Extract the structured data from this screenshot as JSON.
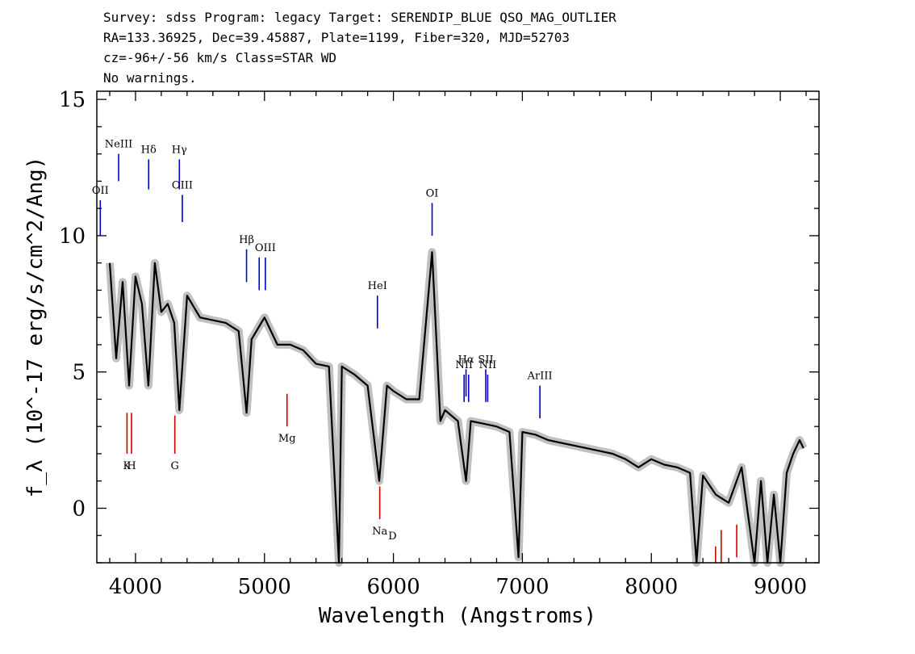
{
  "header": {
    "line1": "Survey: sdss Program: legacy Target: SERENDIP_BLUE QSO_MAG_OUTLIER",
    "line2": "RA=133.36925, Dec=39.45887, Plate=1199, Fiber=320, MJD=52703",
    "line3": "cz=-96+/-56 km/s Class=STAR WD",
    "line4": "No warnings."
  },
  "chart_data": {
    "type": "line",
    "xlabel": "Wavelength (Angstroms)",
    "ylabel": "f_λ (10^-17 erg/s/cm^2/Ang)",
    "xlim": [
      3700,
      9300
    ],
    "ylim": [
      -2,
      15.3
    ],
    "xticks": [
      4000,
      5000,
      6000,
      7000,
      8000,
      9000
    ],
    "yticks": [
      0,
      5,
      10,
      15
    ],
    "colors": {
      "flux": "#000000",
      "error": "#c0c0c0",
      "emission": "#0000cc",
      "absorption": "#cc0000"
    },
    "series": [
      {
        "x": [
          3800,
          3850,
          3900,
          3950,
          4000,
          4050,
          4100,
          4150,
          4200,
          4250,
          4300,
          4340,
          4400,
          4500,
          4600,
          4700,
          4800,
          4861,
          4900,
          5000,
          5100,
          5200,
          5300,
          5400,
          5500,
          5577,
          5600,
          5700,
          5800,
          5890,
          5950,
          6000,
          6100,
          6200,
          6300,
          6364,
          6400,
          6500,
          6563,
          6600,
          6700,
          6800,
          6900,
          6970,
          7000,
          7100,
          7200,
          7300,
          7400,
          7500,
          7600,
          7700,
          7800,
          7900,
          8000,
          8100,
          8200,
          8300,
          8350,
          8400,
          8500,
          8600,
          8700,
          8800,
          8850,
          8900,
          8950,
          9000,
          9050,
          9100,
          9150,
          9180
        ],
        "values": [
          9.0,
          5.5,
          8.3,
          4.5,
          8.5,
          7.5,
          4.5,
          9.0,
          7.2,
          7.5,
          6.8,
          3.6,
          7.8,
          7.0,
          6.9,
          6.8,
          6.5,
          3.5,
          6.2,
          7.0,
          6.0,
          6.0,
          5.8,
          5.3,
          5.2,
          -2.0,
          5.2,
          4.9,
          4.5,
          1.0,
          4.5,
          4.3,
          4.0,
          4.0,
          9.4,
          3.2,
          3.6,
          3.2,
          1.0,
          3.2,
          3.1,
          3.0,
          2.8,
          -1.8,
          2.8,
          2.7,
          2.5,
          2.4,
          2.3,
          2.2,
          2.1,
          2.0,
          1.8,
          1.5,
          1.8,
          1.6,
          1.5,
          1.3,
          -2.0,
          1.2,
          0.5,
          0.2,
          1.5,
          -2.0,
          1.0,
          -2.0,
          0.5,
          -2.0,
          1.3,
          2.0,
          2.5,
          2.2
        ]
      }
    ],
    "emission_lines": [
      {
        "label": "OII",
        "x": 3727,
        "y1": 10.0,
        "y2": 11.3
      },
      {
        "label": "NeIII",
        "x": 3869,
        "y1": 12.0,
        "y2": 13.0
      },
      {
        "label": "Hδ",
        "x": 4102,
        "y1": 11.7,
        "y2": 12.8
      },
      {
        "label": "Hγ",
        "x": 4340,
        "y1": 11.7,
        "y2": 12.8
      },
      {
        "label": "OIII",
        "x": 4363,
        "y1": 10.5,
        "y2": 11.5
      },
      {
        "label": "Hβ",
        "x": 4861,
        "y1": 8.3,
        "y2": 9.5
      },
      {
        "label": "",
        "x": 4959,
        "y1": 8.0,
        "y2": 9.2
      },
      {
        "label": "OIII",
        "x": 5007,
        "y1": 8.0,
        "y2": 9.2
      },
      {
        "label": "HeI",
        "x": 5876,
        "y1": 6.6,
        "y2": 7.8
      },
      {
        "label": "OI",
        "x": 6300,
        "y1": 10.0,
        "y2": 11.2
      },
      {
        "label": "NII",
        "x": 6548,
        "y1": 3.9,
        "y2": 4.9
      },
      {
        "label": "Hα",
        "x": 6563,
        "y1": 4.1,
        "y2": 5.1
      },
      {
        "label": "",
        "x": 6583,
        "y1": 3.9,
        "y2": 4.9
      },
      {
        "label": "SII",
        "x": 6716,
        "y1": 3.9,
        "y2": 5.1
      },
      {
        "label": "NII",
        "x": 6731,
        "y1": 3.9,
        "y2": 4.9
      },
      {
        "label": "ArIII",
        "x": 7136,
        "y1": 3.3,
        "y2": 4.5
      }
    ],
    "absorption_lines": [
      {
        "label": "K",
        "x": 3934,
        "y1": 2.0,
        "y2": 3.5
      },
      {
        "label": "H",
        "x": 3969,
        "y1": 2.0,
        "y2": 3.5
      },
      {
        "label": "G",
        "x": 4305,
        "y1": 2.0,
        "y2": 3.4
      },
      {
        "label": "Mg",
        "x": 5175,
        "y1": 3.0,
        "y2": 4.2
      },
      {
        "label": "Na",
        "x": 5894,
        "y1": -0.4,
        "y2": 0.8
      },
      {
        "label": "",
        "x": 8498,
        "y1": -2.0,
        "y2": -1.4
      },
      {
        "label": "",
        "x": 8542,
        "y1": -2.0,
        "y2": -0.8
      },
      {
        "label": "",
        "x": 8662,
        "y1": -1.8,
        "y2": -0.6
      }
    ],
    "extra_labels": [
      {
        "label": "D",
        "x": 5960,
        "y": -1.0
      }
    ]
  }
}
